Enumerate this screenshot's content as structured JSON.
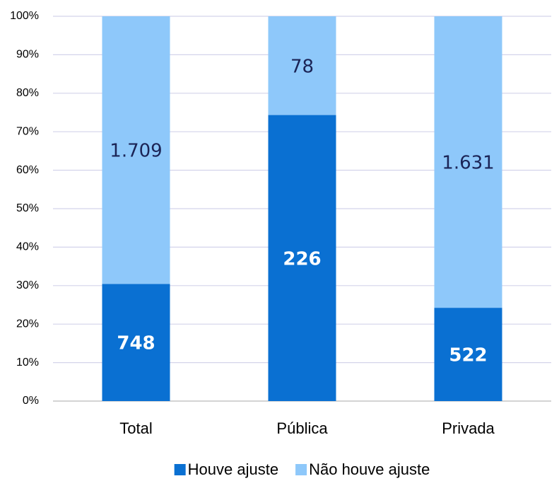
{
  "chart_data": {
    "type": "bar",
    "stack": "percent",
    "categories": [
      "Total",
      "Pública",
      "Privada"
    ],
    "series": [
      {
        "name": "Houve ajuste",
        "color": "#0a70d2",
        "values": [
          748,
          226,
          522
        ],
        "value_labels": [
          "748",
          "226",
          "522"
        ]
      },
      {
        "name": "Não houve ajuste",
        "color": "#8ec8fa",
        "values": [
          1709,
          78,
          1631
        ],
        "value_labels": [
          "1.709",
          "78",
          "1.631"
        ]
      }
    ],
    "ylim": [
      0,
      100
    ],
    "yticks": [
      {
        "value": 0,
        "label": "0%"
      },
      {
        "value": 10,
        "label": "10%"
      },
      {
        "value": 20,
        "label": "20%"
      },
      {
        "value": 30,
        "label": "30%"
      },
      {
        "value": 40,
        "label": "40%"
      },
      {
        "value": 50,
        "label": "50%"
      },
      {
        "value": 60,
        "label": "60%"
      },
      {
        "value": 70,
        "label": "70%"
      },
      {
        "value": 80,
        "label": "80%"
      },
      {
        "value": 90,
        "label": "90%"
      },
      {
        "value": 100,
        "label": "100%"
      }
    ],
    "grid": true,
    "legend": "bottom"
  }
}
